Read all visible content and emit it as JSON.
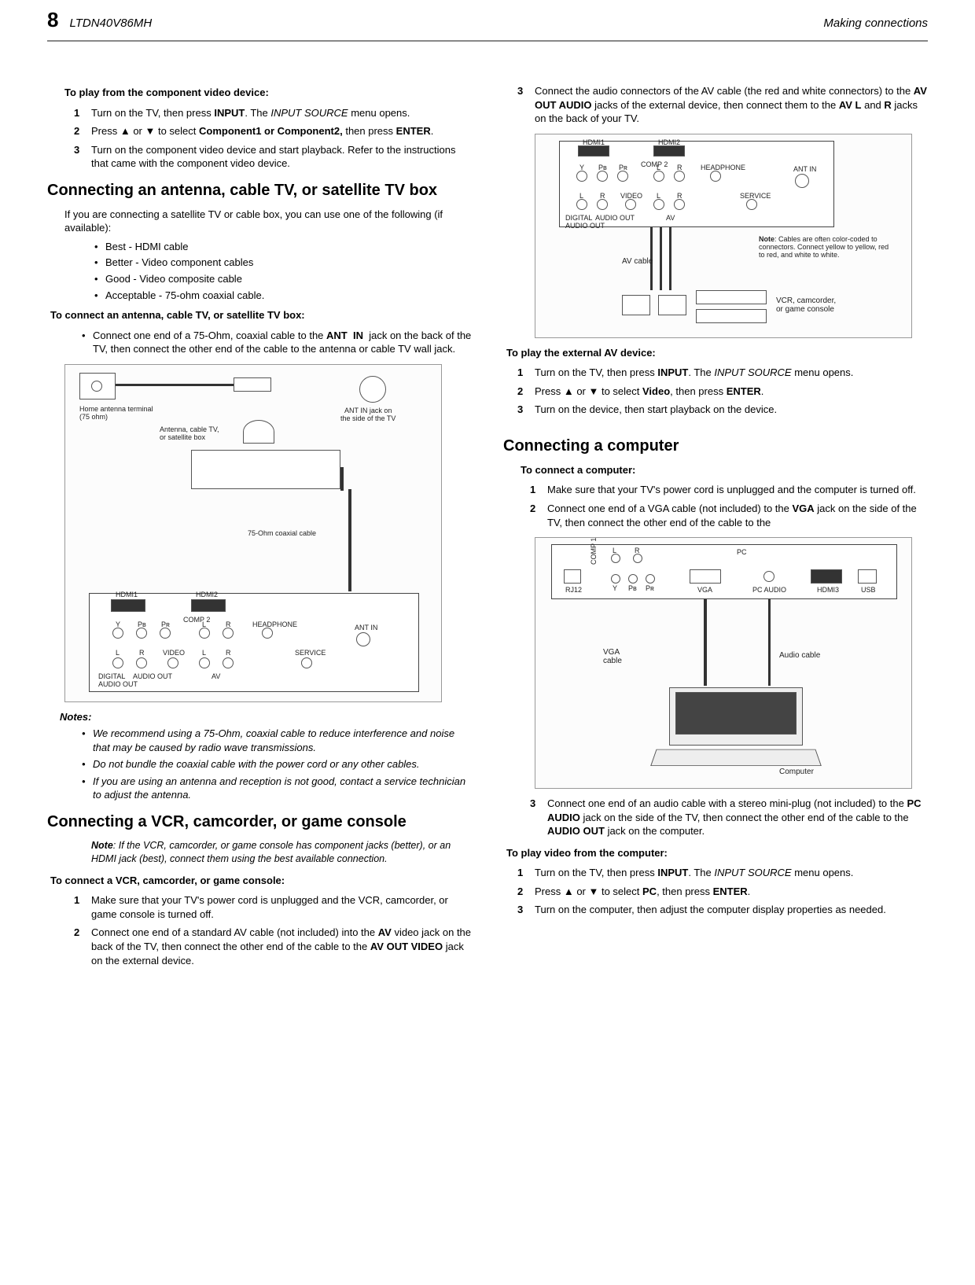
{
  "header": {
    "page_num": "8",
    "model": "LTDN40V86MH",
    "chapter": "Making connections"
  },
  "left": {
    "play_component_hdr": "To play from the component video device:",
    "play_component_steps": [
      "Turn on the TV, then press <b>INPUT</b>. The <i>INPUT SOURCE</i> menu opens.",
      "Press ▲ or ▼ to select <b>Component1 or Component2,</b> then press <b>ENTER</b>.",
      "Turn on the component video device and start playback. Refer to the instructions that came with the component video device."
    ],
    "antenna_h2": "Connecting an antenna, cable TV, or satellite TV box",
    "antenna_intro": "If you are connecting a satellite TV or cable box, you can use one of the following (if available):",
    "antenna_bullets": [
      "Best - HDMI cable",
      "Better - Video component cables",
      "Good - Video composite cable",
      "Acceptable - 75-ohm coaxial cable."
    ],
    "antenna_connect_hdr": "To connect an antenna, cable TV, or satellite TV box:",
    "antenna_connect_step": "Connect one end of a 75-Ohm, coaxial cable to the <b>ANT&nbsp; IN</b>&nbsp; jack on the back of the TV, then connect the other end of the cable to the antenna or cable TV wall jack.",
    "fig1": {
      "home_term": "Home antenna terminal\n(75 ohm)",
      "antenna_box": "Antenna, cable TV,\nor satellite box",
      "ant_in": "ANT IN jack on\nthe side of the TV",
      "coax": "75-Ohm coaxial cable",
      "ports": [
        "HDMI1",
        "HDMI2",
        "COMP 2",
        "Y",
        "Pʙ",
        "Pʀ",
        "L",
        "R",
        "HEADPHONE",
        "ANT IN",
        "L",
        "R",
        "VIDEO",
        "L",
        "R",
        "SERVICE",
        "DIGITAL\nAUDIO OUT",
        "AUDIO OUT",
        "AV"
      ]
    },
    "notes_hdr": "Notes:",
    "notes": [
      "We recommend using a 75-Ohm, coaxial cable to reduce interference and noise that may be caused by radio wave transmissions.",
      "Do not bundle the coaxial cable with the power cord or any other cables.",
      "If you are using an antenna and reception is not good, contact a service technician to adjust the antenna."
    ],
    "vcr_h2": "Connecting a VCR, camcorder, or game console",
    "vcr_note": "<b>Note</b>: If the VCR, camcorder, or game console has component jacks (better), or an HDMI jack (best), connect them using the best available connection.",
    "vcr_connect_hdr": "To connect a VCR, camcorder, or game console:",
    "vcr_steps": [
      "Make sure that your TV's power cord is unplugged and the VCR, camcorder, or game console is turned off.",
      "Connect one end of a standard AV cable (not included) into the <b>AV</b> video  jack on the back of the TV, then connect the other end of the cable to the <b>AV OUT VIDEO</b> jack on the external device."
    ]
  },
  "right": {
    "step3": "Connect the audio connectors of the AV cable (the red and white connectors) to the <b>AV OUT AUDIO</b> jacks of the external device, then connect them to the <b>AV L</b> and <b>R</b> jacks on the back of your TV.",
    "fig2": {
      "av_cable": "AV cable",
      "note": "<b>Note</b>: Cables are often color-coded to connectors. Connect yellow to yellow, red to red, and white to white.",
      "devices": "VCR, camcorder,\nor game console",
      "ports": [
        "HDMI1",
        "HDMI2",
        "COMP 2",
        "Y",
        "Pʙ",
        "Pʀ",
        "L",
        "R",
        "HEADPHONE",
        "ANT IN",
        "L",
        "R",
        "VIDEO",
        "L",
        "R",
        "SERVICE",
        "DIGITAL\nAUDIO OUT",
        "AUDIO OUT",
        "AV"
      ]
    },
    "play_av_hdr": "To play the external AV device:",
    "play_av_steps": [
      "Turn on the TV, then press <b>INPUT</b>. The <i>INPUT SOURCE</i> menu opens.",
      "Press ▲ or ▼ to select  <b>Video</b>, then press <b>ENTER</b>.",
      "Turn on the device, then start playback on the device."
    ],
    "pc_h2": "Connecting a computer",
    "pc_connect_hdr": "To connect a computer:",
    "pc_steps_a": [
      "Make sure that your TV's power cord is unplugged and the computer is turned off.",
      "Connect one end of a VGA cable (not included) to the <b>VGA</b> jack on the side of the TV, then connect  the other end of the cable to the"
    ],
    "fig3": {
      "vga_cable": "VGA\ncable",
      "audio_cable": "Audio cable",
      "computer": "Computer",
      "ports": [
        "RJ12",
        "COMP 1",
        "L",
        "R",
        "Y",
        "Pʙ",
        "Pʀ",
        "PC",
        "VGA",
        "PC AUDIO",
        "HDMI3",
        "USB"
      ]
    },
    "pc_step3": "Connect one end of an audio cable with a stereo mini-plug (not included) to the <b>PC AUDIO</b>  jack on the side of the TV, then connect the other end of the cable to the   <b>AUDIO OUT</b> jack on the computer.",
    "pc_play_hdr": "To play video from the computer:",
    "pc_play_steps": [
      "Turn on the TV, then press <b>INPUT</b>. The <i>INPUT SOURCE</i> menu opens.",
      "Press ▲ or ▼ to select <b>PC</b>, then press <b>ENTER</b>.",
      "Turn on the computer, then adjust the computer display properties as needed."
    ]
  }
}
